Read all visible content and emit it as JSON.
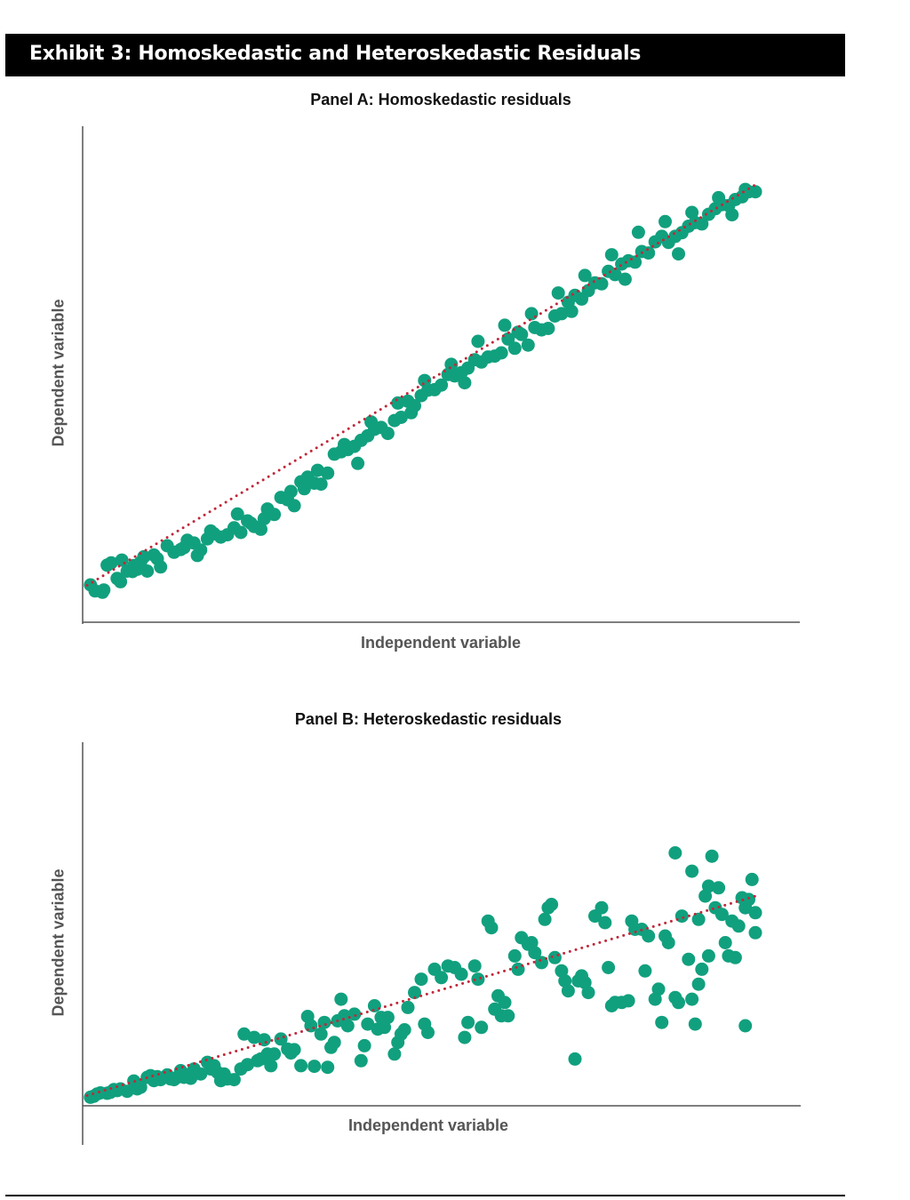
{
  "exhibit_title": "Exhibit 3: Homoskedastic and Heteroskedastic Residuals",
  "colors": {
    "point": "#11a07e",
    "trend": "#c0283a",
    "axis": "#555555",
    "header_bg": "#000000"
  },
  "chart_data": [
    {
      "type": "scatter",
      "title": "Panel A: Homoskedastic residuals",
      "xlabel": "Independent variable",
      "ylabel": "Dependent variable",
      "xlim": [
        0,
        100
      ],
      "ylim": [
        0,
        100
      ],
      "grid": false,
      "trend_line": {
        "style": "dotted",
        "x": [
          0,
          100
        ],
        "y": [
          8,
          95
        ]
      },
      "points": [
        [
          0.5,
          8.1
        ],
        [
          1.2,
          6.8
        ],
        [
          2.3,
          6.5
        ],
        [
          3.0,
          12.4
        ],
        [
          3.6,
          12.9
        ],
        [
          4.5,
          9.5
        ],
        [
          5.0,
          8.8
        ],
        [
          6.0,
          11.1
        ],
        [
          6.8,
          11.0
        ],
        [
          7.5,
          11.5
        ],
        [
          8.5,
          14.2
        ],
        [
          9.0,
          11.1
        ],
        [
          10.0,
          14.6
        ],
        [
          11.0,
          12.0
        ],
        [
          12.0,
          16.6
        ],
        [
          13.0,
          15.2
        ],
        [
          14.0,
          15.8
        ],
        [
          15.0,
          17.8
        ],
        [
          16.0,
          17.2
        ],
        [
          17.0,
          15.7
        ],
        [
          18.0,
          18.1
        ],
        [
          19.0,
          19.2
        ],
        [
          20.0,
          18.5
        ],
        [
          21.0,
          19.0
        ],
        [
          22.0,
          20.5
        ],
        [
          23.0,
          19.5
        ],
        [
          24.0,
          22.0
        ],
        [
          25.0,
          20.8
        ],
        [
          26.0,
          20.2
        ],
        [
          27.0,
          24.6
        ],
        [
          28.0,
          23.4
        ],
        [
          29.0,
          27.1
        ],
        [
          30.0,
          26.6
        ],
        [
          31.0,
          25.3
        ],
        [
          32.0,
          30.5
        ],
        [
          33.0,
          31.5
        ],
        [
          34.0,
          30.2
        ],
        [
          35.0,
          30.0
        ],
        [
          36.0,
          32.4
        ],
        [
          37.0,
          36.5
        ],
        [
          38.0,
          37.0
        ],
        [
          39.0,
          37.5
        ],
        [
          40.0,
          38.2
        ],
        [
          41.0,
          39.5
        ],
        [
          42.0,
          40.5
        ],
        [
          43.0,
          41.9
        ],
        [
          44.0,
          42.3
        ],
        [
          45.0,
          41.0
        ],
        [
          46.0,
          43.8
        ],
        [
          47.0,
          44.5
        ],
        [
          48.0,
          48.0
        ],
        [
          49.0,
          47.0
        ],
        [
          50.0,
          49.2
        ],
        [
          51.0,
          50.4
        ],
        [
          52.0,
          50.5
        ],
        [
          53.0,
          51.5
        ],
        [
          54.0,
          53.8
        ],
        [
          55.0,
          53.5
        ],
        [
          56.0,
          54.2
        ],
        [
          57.0,
          55.2
        ],
        [
          58.0,
          57.0
        ],
        [
          59.0,
          56.5
        ],
        [
          60.0,
          57.6
        ],
        [
          61.0,
          57.8
        ],
        [
          62.0,
          58.5
        ],
        [
          63.0,
          61.5
        ],
        [
          64.0,
          59.5
        ],
        [
          65.0,
          62.5
        ],
        [
          66.0,
          60.2
        ],
        [
          67.0,
          64.0
        ],
        [
          68.0,
          63.5
        ],
        [
          69.0,
          63.8
        ],
        [
          70.0,
          66.5
        ],
        [
          71.0,
          67.0
        ],
        [
          72.0,
          69.5
        ],
        [
          73.0,
          71.0
        ],
        [
          74.0,
          70.2
        ],
        [
          75.0,
          72.0
        ],
        [
          76.0,
          73.7
        ],
        [
          77.0,
          73.5
        ],
        [
          78.0,
          76.2
        ],
        [
          79.0,
          75.5
        ],
        [
          80.0,
          77.8
        ],
        [
          81.0,
          78.5
        ],
        [
          82.0,
          78.2
        ],
        [
          83.0,
          80.5
        ],
        [
          84.0,
          80.2
        ],
        [
          85.0,
          82.6
        ],
        [
          86.0,
          83.8
        ],
        [
          87.0,
          82.5
        ],
        [
          88.0,
          83.8
        ],
        [
          89.0,
          84.6
        ],
        [
          90.0,
          86.0
        ],
        [
          91.0,
          86.8
        ],
        [
          92.0,
          86.5
        ],
        [
          93.0,
          88.6
        ],
        [
          94.0,
          89.8
        ],
        [
          95.0,
          90.7
        ],
        [
          96.0,
          90.5
        ],
        [
          97.0,
          91.8
        ],
        [
          98.0,
          92.4
        ],
        [
          99.0,
          93.5
        ],
        [
          100.0,
          93.5
        ],
        [
          2.5,
          7.0
        ],
        [
          5.2,
          13.5
        ],
        [
          7.0,
          12.3
        ],
        [
          10.5,
          13.8
        ],
        [
          14.5,
          16.2
        ],
        [
          18.5,
          19.8
        ],
        [
          22.5,
          23.5
        ],
        [
          26.5,
          22.5
        ],
        [
          30.5,
          28.4
        ],
        [
          34.5,
          33.0
        ],
        [
          38.5,
          38.6
        ],
        [
          42.5,
          43.5
        ],
        [
          46.5,
          47.6
        ],
        [
          50.5,
          52.5
        ],
        [
          54.5,
          56.0
        ],
        [
          58.5,
          61.0
        ],
        [
          62.5,
          64.5
        ],
        [
          66.5,
          67.0
        ],
        [
          70.5,
          71.5
        ],
        [
          74.5,
          75.3
        ],
        [
          78.5,
          79.8
        ],
        [
          82.5,
          84.7
        ],
        [
          86.5,
          87.0
        ],
        [
          90.5,
          89.0
        ],
        [
          94.5,
          92.2
        ],
        [
          98.5,
          94.0
        ],
        [
          8.0,
          13.0
        ],
        [
          16.5,
          14.5
        ],
        [
          24.5,
          21.5
        ],
        [
          32.5,
          29.0
        ],
        [
          40.5,
          34.5
        ],
        [
          48.5,
          45.5
        ],
        [
          56.5,
          52.0
        ],
        [
          64.5,
          63.0
        ],
        [
          72.5,
          67.5
        ],
        [
          80.5,
          74.5
        ],
        [
          88.5,
          80.0
        ],
        [
          96.5,
          88.5
        ]
      ]
    },
    {
      "type": "scatter",
      "title": "Panel B: Heteroskedastic residuals",
      "xlabel": "Independent variable",
      "ylabel": "Dependent variable",
      "xlim": [
        0,
        100
      ],
      "ylim": [
        0,
        100
      ],
      "grid": false,
      "trend_line": {
        "style": "dotted",
        "x": [
          0,
          100
        ],
        "y": [
          2,
          62
        ]
      },
      "points": [
        [
          0.5,
          1.5
        ],
        [
          1.0,
          1.8
        ],
        [
          1.5,
          2.5
        ],
        [
          2.0,
          2.8
        ],
        [
          3.0,
          2.7
        ],
        [
          3.5,
          3.0
        ],
        [
          4.0,
          3.8
        ],
        [
          4.5,
          3.5
        ],
        [
          5.0,
          4.0
        ],
        [
          6.0,
          3.3
        ],
        [
          7.0,
          6.4
        ],
        [
          7.5,
          4.0
        ],
        [
          8.0,
          4.5
        ],
        [
          9.0,
          7.5
        ],
        [
          9.5,
          8.0
        ],
        [
          10.0,
          6.5
        ],
        [
          10.5,
          7.7
        ],
        [
          11.0,
          6.8
        ],
        [
          12.0,
          8.2
        ],
        [
          12.5,
          7.0
        ],
        [
          13.0,
          6.8
        ],
        [
          13.5,
          7.5
        ],
        [
          14.0,
          9.5
        ],
        [
          14.5,
          7.5
        ],
        [
          15.0,
          8.2
        ],
        [
          15.5,
          7.2
        ],
        [
          16.0,
          10.0
        ],
        [
          17.0,
          8.5
        ],
        [
          18.0,
          12.0
        ],
        [
          18.5,
          10.0
        ],
        [
          19.0,
          11.0
        ],
        [
          19.5,
          9.0
        ],
        [
          20.0,
          6.5
        ],
        [
          20.5,
          8.5
        ],
        [
          21.0,
          7.0
        ],
        [
          22.0,
          6.8
        ],
        [
          23.0,
          10.0
        ],
        [
          23.5,
          20.5
        ],
        [
          24.0,
          11.3
        ],
        [
          25.0,
          19.5
        ],
        [
          25.5,
          12.5
        ],
        [
          26.0,
          13.0
        ],
        [
          26.5,
          18.8
        ],
        [
          27.0,
          14.5
        ],
        [
          27.5,
          11.0
        ],
        [
          28.0,
          14.5
        ],
        [
          29.0,
          19.0
        ],
        [
          30.0,
          16.0
        ],
        [
          30.5,
          14.8
        ],
        [
          31.0,
          15.8
        ],
        [
          32.0,
          11.0
        ],
        [
          33.0,
          25.8
        ],
        [
          33.5,
          23.0
        ],
        [
          34.0,
          10.8
        ],
        [
          35.0,
          20.5
        ],
        [
          35.5,
          24.0
        ],
        [
          36.0,
          10.5
        ],
        [
          36.5,
          16.5
        ],
        [
          37.0,
          18.0
        ],
        [
          37.5,
          24.5
        ],
        [
          38.0,
          31.0
        ],
        [
          38.5,
          26.0
        ],
        [
          39.0,
          23.0
        ],
        [
          40.0,
          26.5
        ],
        [
          41.0,
          12.5
        ],
        [
          41.5,
          17.0
        ],
        [
          42.0,
          23.5
        ],
        [
          43.0,
          29.0
        ],
        [
          43.5,
          22.0
        ],
        [
          44.0,
          25.5
        ],
        [
          44.5,
          22.5
        ],
        [
          45.0,
          25.5
        ],
        [
          46.0,
          14.5
        ],
        [
          46.5,
          18.0
        ],
        [
          47.0,
          20.5
        ],
        [
          47.5,
          21.8
        ],
        [
          48.0,
          28.5
        ],
        [
          49.0,
          33.0
        ],
        [
          50.0,
          37.0
        ],
        [
          50.5,
          23.5
        ],
        [
          51.0,
          21.0
        ],
        [
          52.0,
          40.0
        ],
        [
          53.0,
          37.5
        ],
        [
          54.0,
          41.0
        ],
        [
          55.0,
          40.5
        ],
        [
          56.0,
          38.5
        ],
        [
          56.5,
          19.5
        ],
        [
          57.0,
          24.0
        ],
        [
          58.0,
          41.0
        ],
        [
          58.5,
          37.0
        ],
        [
          59.0,
          22.5
        ],
        [
          60.0,
          54.5
        ],
        [
          60.5,
          52.5
        ],
        [
          61.0,
          28.0
        ],
        [
          61.5,
          32.0
        ],
        [
          62.0,
          26.0
        ],
        [
          62.5,
          30.0
        ],
        [
          63.0,
          26.0
        ],
        [
          64.0,
          44.0
        ],
        [
          64.5,
          40.0
        ],
        [
          65.0,
          49.5
        ],
        [
          66.0,
          47.5
        ],
        [
          66.5,
          48.0
        ],
        [
          67.0,
          45.0
        ],
        [
          68.0,
          42.0
        ],
        [
          68.5,
          55.0
        ],
        [
          69.0,
          58.5
        ],
        [
          69.5,
          59.5
        ],
        [
          70.0,
          43.5
        ],
        [
          71.0,
          39.5
        ],
        [
          71.5,
          36.5
        ],
        [
          72.0,
          33.5
        ],
        [
          73.0,
          13.0
        ],
        [
          73.5,
          36.5
        ],
        [
          74.0,
          38.0
        ],
        [
          74.5,
          36.0
        ],
        [
          75.0,
          33.0
        ],
        [
          76.0,
          56.0
        ],
        [
          77.0,
          58.5
        ],
        [
          77.5,
          54.0
        ],
        [
          78.0,
          40.5
        ],
        [
          78.5,
          29.0
        ],
        [
          79.0,
          30.0
        ],
        [
          80.0,
          30.0
        ],
        [
          81.0,
          30.5
        ],
        [
          81.5,
          54.5
        ],
        [
          82.0,
          52.0
        ],
        [
          83.0,
          52.0
        ],
        [
          83.5,
          39.5
        ],
        [
          84.0,
          50.0
        ],
        [
          85.0,
          31.0
        ],
        [
          85.5,
          34.0
        ],
        [
          86.0,
          24.0
        ],
        [
          86.5,
          50.0
        ],
        [
          87.0,
          48.0
        ],
        [
          88.0,
          31.5
        ],
        [
          88.5,
          30.0
        ],
        [
          89.0,
          56.0
        ],
        [
          90.0,
          43.0
        ],
        [
          90.5,
          31.0
        ],
        [
          91.0,
          23.5
        ],
        [
          91.5,
          35.5
        ],
        [
          92.0,
          40.0
        ],
        [
          93.0,
          44.0
        ],
        [
          93.5,
          74.0
        ],
        [
          94.0,
          58.5
        ],
        [
          95.0,
          56.5
        ],
        [
          95.5,
          48.0
        ],
        [
          96.0,
          44.0
        ],
        [
          97.0,
          43.5
        ],
        [
          97.5,
          53.0
        ],
        [
          98.0,
          61.5
        ],
        [
          98.5,
          23.0
        ],
        [
          99.0,
          61.0
        ],
        [
          100.0,
          51.0
        ],
        [
          88.0,
          75.0
        ],
        [
          90.5,
          69.5
        ],
        [
          92.5,
          62.0
        ],
        [
          94.5,
          64.5
        ],
        [
          96.5,
          54.5
        ],
        [
          98.5,
          58.5
        ],
        [
          100.0,
          57.0
        ],
        [
          91.5,
          55.0
        ],
        [
          93.0,
          65.0
        ],
        [
          99.5,
          67.0
        ]
      ]
    }
  ]
}
